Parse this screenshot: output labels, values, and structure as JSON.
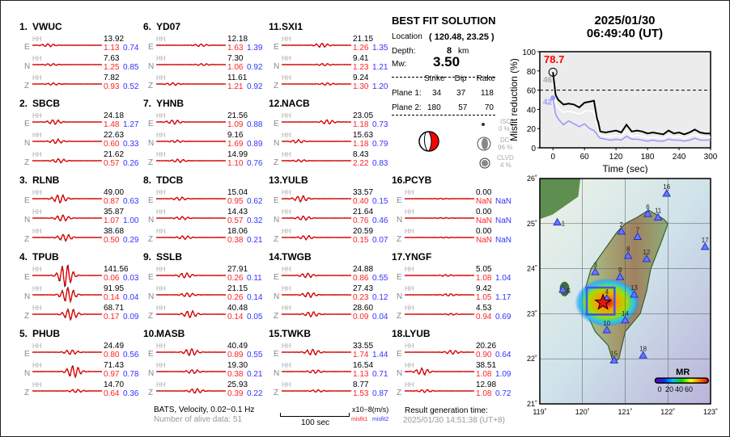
{
  "stations": [
    {
      "num": "1.",
      "name": "VWUC",
      "comps": [
        [
          "E",
          "HH",
          "13.92",
          "1.13",
          "0.74"
        ],
        [
          "N",
          "HH",
          "7.63",
          "1.25",
          "0.85"
        ],
        [
          "Z",
          "HH",
          "7.82",
          "0.93",
          "0.52"
        ]
      ]
    },
    {
      "num": "2.",
      "name": "SBCB",
      "comps": [
        [
          "E",
          "HH",
          "24.18",
          "1.48",
          "1.27"
        ],
        [
          "N",
          "HH",
          "22.63",
          "0.60",
          "0.33"
        ],
        [
          "Z",
          "HH",
          "21.62",
          "0.57",
          "0.26"
        ]
      ]
    },
    {
      "num": "3.",
      "name": "RLNB",
      "comps": [
        [
          "E",
          "HH",
          "49.00",
          "0.87",
          "0.63"
        ],
        [
          "N",
          "HH",
          "35.87",
          "1.07",
          "1.00"
        ],
        [
          "Z",
          "HH",
          "38.68",
          "0.50",
          "0.29"
        ]
      ]
    },
    {
      "num": "4.",
      "name": "TPUB",
      "comps": [
        [
          "E",
          "HH",
          "141.56",
          "0.06",
          "0.03"
        ],
        [
          "N",
          "HH",
          "91.95",
          "0.14",
          "0.04"
        ],
        [
          "Z",
          "HH",
          "68.71",
          "0.17",
          "0.09"
        ]
      ]
    },
    {
      "num": "5.",
      "name": "PHUB",
      "comps": [
        [
          "E",
          "HH",
          "24.49",
          "0.80",
          "0.56"
        ],
        [
          "N",
          "HH",
          "71.43",
          "0.97",
          "0.78"
        ],
        [
          "Z",
          "HH",
          "14.70",
          "0.64",
          "0.36"
        ]
      ]
    },
    {
      "num": "6.",
      "name": "YD07",
      "comps": [
        [
          "E",
          "HH",
          "12.18",
          "1.63",
          "1.39"
        ],
        [
          "N",
          "HH",
          "7.30",
          "1.06",
          "0.92"
        ],
        [
          "Z",
          "HH",
          "11.61",
          "1.21",
          "0.92"
        ]
      ]
    },
    {
      "num": "7.",
      "name": "YHNB",
      "comps": [
        [
          "E",
          "HH",
          "21.56",
          "1.09",
          "0.88"
        ],
        [
          "N",
          "HH",
          "9.16",
          "1.69",
          "0.89"
        ],
        [
          "Z",
          "HH",
          "14.99",
          "1.10",
          "0.76"
        ]
      ]
    },
    {
      "num": "8.",
      "name": "TDCB",
      "comps": [
        [
          "E",
          "HH",
          "15.04",
          "0.95",
          "0.62"
        ],
        [
          "N",
          "HH",
          "14.43",
          "0.57",
          "0.32"
        ],
        [
          "Z",
          "HH",
          "18.06",
          "0.38",
          "0.21"
        ]
      ]
    },
    {
      "num": "9.",
      "name": "SSLB",
      "comps": [
        [
          "E",
          "HH",
          "27.91",
          "0.26",
          "0.11"
        ],
        [
          "N",
          "HH",
          "21.15",
          "0.26",
          "0.14"
        ],
        [
          "Z",
          "HH",
          "40.48",
          "0.14",
          "0.05"
        ]
      ]
    },
    {
      "num": "10.",
      "name": "MASB",
      "comps": [
        [
          "E",
          "HH",
          "40.49",
          "0.89",
          "0.55"
        ],
        [
          "N",
          "HH",
          "19.30",
          "0.38",
          "0.21"
        ],
        [
          "Z",
          "HH",
          "25.93",
          "0.39",
          "0.22"
        ]
      ]
    },
    {
      "num": "11.",
      "name": "SXI1",
      "comps": [
        [
          "E",
          "HH",
          "21.15",
          "1.26",
          "1.35"
        ],
        [
          "N",
          "HH",
          "9.41",
          "1.23",
          "1.21"
        ],
        [
          "Z",
          "HH",
          "9.24",
          "1.30",
          "1.20"
        ]
      ]
    },
    {
      "num": "12.",
      "name": "NACB",
      "comps": [
        [
          "E",
          "HH",
          "23.05",
          "1.18",
          "0.73"
        ],
        [
          "N",
          "HH",
          "15.63",
          "1.18",
          "0.79"
        ],
        [
          "Z",
          "HH",
          "8.43",
          "2.22",
          "0.83"
        ]
      ]
    },
    {
      "num": "13.",
      "name": "YULB",
      "comps": [
        [
          "E",
          "HH",
          "33.57",
          "0.40",
          "0.15"
        ],
        [
          "N",
          "HH",
          "21.64",
          "0.76",
          "0.46"
        ],
        [
          "Z",
          "HH",
          "20.59",
          "0.15",
          "0.07"
        ]
      ]
    },
    {
      "num": "14.",
      "name": "TWGB",
      "comps": [
        [
          "E",
          "HH",
          "24.88",
          "0.86",
          "0.55"
        ],
        [
          "N",
          "HH",
          "27.43",
          "0.23",
          "0.12"
        ],
        [
          "Z",
          "HH",
          "28.60",
          "0.09",
          "0.04"
        ]
      ]
    },
    {
      "num": "15.",
      "name": "TWKB",
      "comps": [
        [
          "E",
          "HH",
          "33.55",
          "1.74",
          "1.44"
        ],
        [
          "N",
          "HH",
          "16.54",
          "1.13",
          "0.71"
        ],
        [
          "Z",
          "HH",
          "8.77",
          "1.53",
          "0.87"
        ]
      ]
    },
    {
      "num": "16.",
      "name": "PCYB",
      "comps": [
        [
          "E",
          "HH",
          "0.00",
          "NaN",
          "NaN"
        ],
        [
          "N",
          "HH",
          "0.00",
          "NaN",
          "NaN"
        ],
        [
          "Z",
          "HH",
          "0.00",
          "NaN",
          "NaN"
        ]
      ]
    },
    {
      "num": "17.",
      "name": "YNGF",
      "comps": [
        [
          "E",
          "HH",
          "5.05",
          "1.08",
          "1.04"
        ],
        [
          "N",
          "HH",
          "9.42",
          "1.05",
          "1.17"
        ],
        [
          "Z",
          "HH",
          "4.53",
          "0.94",
          "0.69"
        ]
      ]
    },
    {
      "num": "18.",
      "name": "LYUB",
      "comps": [
        [
          "E",
          "HH",
          "20.26",
          "0.90",
          "0.64"
        ],
        [
          "N",
          "HH",
          "38.51",
          "1.08",
          "1.09"
        ],
        [
          "Z",
          "HH",
          "12.98",
          "1.08",
          "0.72"
        ]
      ]
    }
  ],
  "best": {
    "title": "BEST FIT SOLUTION",
    "location_label": "Location",
    "location": "( 120.48,  23.25 )",
    "depth_label": "Depth:",
    "depth": "8",
    "depth_unit": "km",
    "mw_label": "Mw:",
    "mw": "3.50",
    "headers": [
      "Strike",
      "Dip",
      "Rake"
    ],
    "planes": [
      {
        "label": "Plane 1:",
        "values": [
          "34",
          "37",
          "118"
        ]
      },
      {
        "label": "Plane 2:",
        "values": [
          "180",
          "57",
          "70"
        ]
      }
    ],
    "iso_label": "ISO",
    "iso": "0 %",
    "dc_label": "DC",
    "dc": "96 %",
    "clvd_label": "CLVD",
    "clvd": "4 %"
  },
  "datetime": {
    "date": "2025/01/30",
    "time": "06:49:40  (UT)"
  },
  "chart_data": {
    "type": "line",
    "xlabel": "Time (sec)",
    "ylabel": "Misfit reduction (%)",
    "xlim": [
      -25,
      300
    ],
    "ylim": [
      0,
      100
    ],
    "xticks": [
      "0",
      "60",
      "120",
      "180",
      "240",
      "300"
    ],
    "yticks": [
      "0",
      "20",
      "40",
      "60",
      "80",
      "100"
    ],
    "threshold": 60,
    "annotations": {
      "max": "78.7",
      "white_start": "46",
      "blue_start": "42"
    },
    "colors": {
      "max": "#ff0000",
      "white_start": "#aaaaaa",
      "blue_start": "#9999ff"
    },
    "x": [
      0,
      5,
      10,
      20,
      30,
      40,
      50,
      60,
      70,
      78,
      84,
      86,
      90,
      100,
      110,
      120,
      130,
      140,
      150,
      160,
      170,
      180,
      190,
      200,
      210,
      220,
      230,
      240,
      250,
      260,
      270,
      280,
      290,
      300
    ],
    "series": [
      {
        "color": "#000000",
        "values": [
          78.7,
          55,
          50,
          45,
          46,
          45,
          42,
          47,
          48,
          49,
          30,
          27,
          17,
          16,
          17,
          18,
          16,
          24,
          17,
          18,
          17,
          15,
          16,
          15,
          14,
          18,
          15,
          16,
          14,
          16,
          19,
          16,
          15,
          15
        ]
      },
      {
        "color": "#ffffff",
        "values": [
          67,
          47,
          42,
          37,
          38,
          37,
          35,
          38,
          39,
          37,
          24,
          20,
          13,
          12,
          12,
          13,
          12,
          18,
          12,
          13,
          12,
          11,
          11,
          11,
          10,
          13,
          11,
          12,
          10,
          12,
          14,
          12,
          11,
          11
        ]
      },
      {
        "color": "#9999ff",
        "values": [
          52,
          35,
          30,
          24,
          28,
          25,
          22,
          25,
          20,
          18,
          14,
          12,
          10,
          9,
          8,
          9,
          8,
          12,
          9,
          9,
          8,
          7,
          8,
          7,
          7,
          9,
          8,
          8,
          7,
          8,
          10,
          8,
          8,
          8
        ]
      }
    ]
  },
  "map": {
    "lon_ticks": [
      "119˚",
      "120˚",
      "121˚",
      "122˚",
      "123˚"
    ],
    "lat_ticks": [
      "21˚",
      "22˚",
      "23˚",
      "24˚",
      "25˚",
      "26˚"
    ],
    "epicenter": [
      120.48,
      23.25
    ],
    "stations": [
      [
        "1",
        119.41,
        25.02
      ],
      [
        "2",
        120.91,
        24.82
      ],
      [
        "3",
        120.3,
        23.92
      ],
      [
        "4",
        120.57,
        23.33
      ],
      [
        "5",
        119.54,
        23.53
      ],
      [
        "6",
        121.53,
        25.21
      ],
      [
        "7",
        121.29,
        24.7
      ],
      [
        "8",
        121.07,
        24.28
      ],
      [
        "9",
        120.88,
        23.81
      ],
      [
        "10",
        120.57,
        22.63
      ],
      [
        "11",
        121.77,
        25.13
      ],
      [
        "12",
        121.5,
        24.21
      ],
      [
        "13",
        121.21,
        23.42
      ],
      [
        "14",
        121.0,
        22.85
      ],
      [
        "15",
        120.74,
        21.96
      ],
      [
        "16",
        121.97,
        25.66
      ],
      [
        "17",
        122.87,
        24.48
      ],
      [
        "18",
        121.42,
        22.07
      ]
    ],
    "colorbar_title": "MR",
    "colorbar_ticks": [
      "0",
      "20",
      "40",
      "60"
    ]
  },
  "footer": {
    "source": "BATS, Velocity, 0.02−0.1 Hz",
    "alive": "Number of alive data: 51",
    "scale_label": "100 sec",
    "units": "x10−8(m/s)",
    "misfit1": "misfit1",
    "misfit2": "misfit2",
    "gen_label": "Result generation time:",
    "gen_time": "2025/01/30 14:51:38 (UT+8)"
  }
}
